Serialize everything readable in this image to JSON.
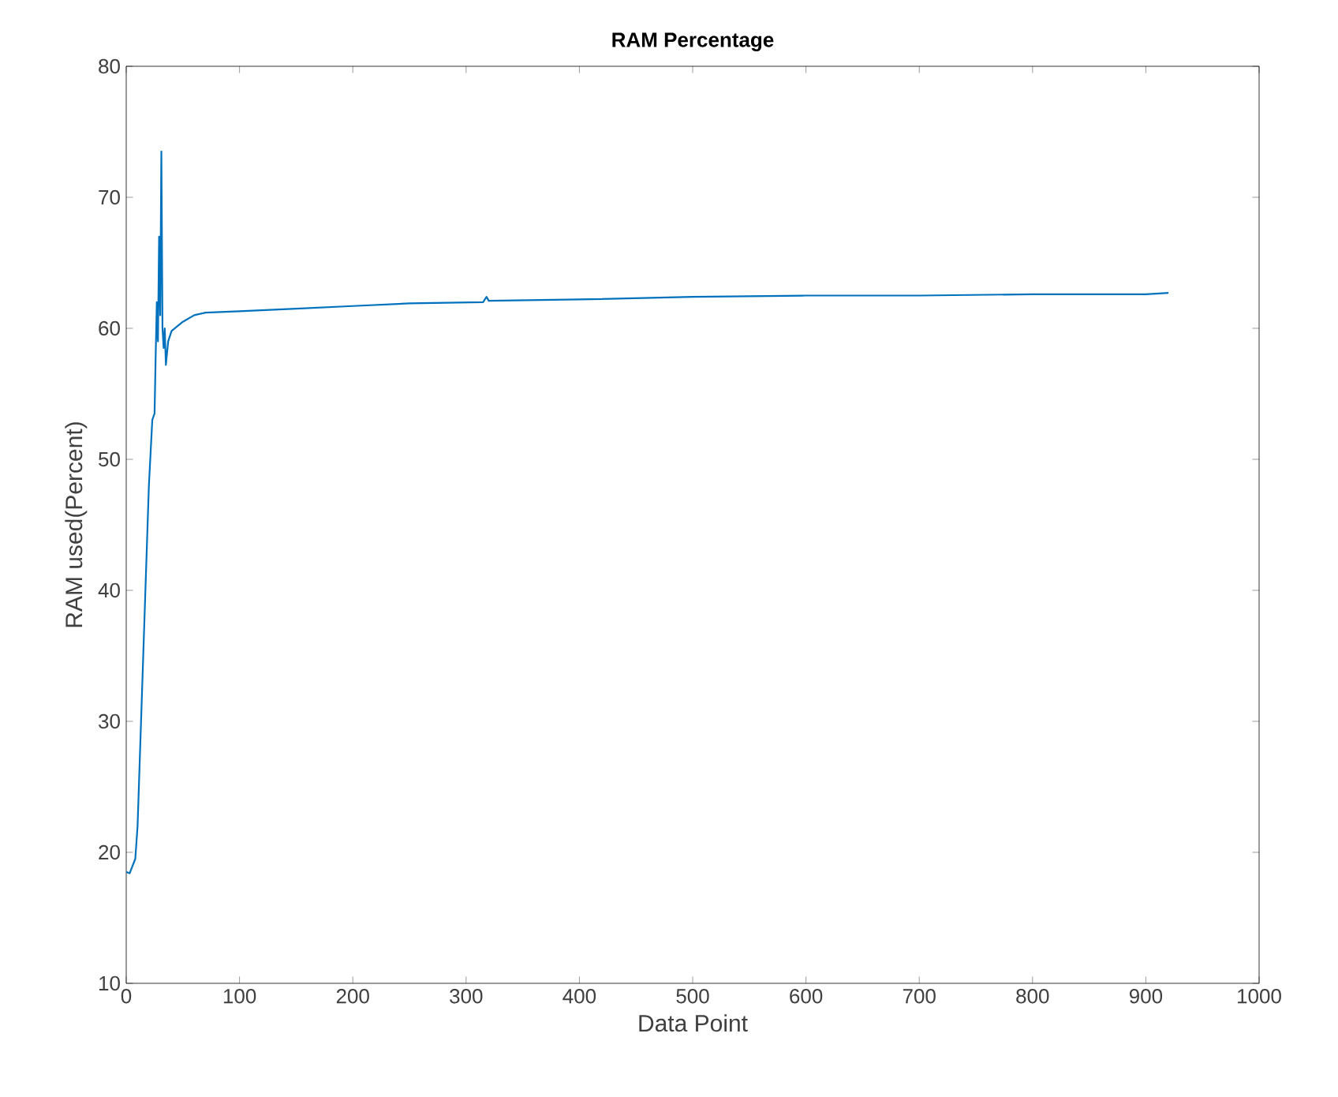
{
  "chart_data": {
    "type": "line",
    "title": "RAM Percentage",
    "xlabel": "Data Point",
    "ylabel": "RAM used(Percent)",
    "xlim": [
      0,
      1000
    ],
    "ylim": [
      10,
      80
    ],
    "xticks": [
      0,
      100,
      200,
      300,
      400,
      500,
      600,
      700,
      800,
      900,
      1000
    ],
    "yticks": [
      10,
      20,
      30,
      40,
      50,
      60,
      70,
      80
    ],
    "grid": false,
    "series": [
      {
        "color": "#0072bd",
        "x": [
          0,
          3,
          8,
          10,
          15,
          20,
          23,
          25,
          26,
          27,
          28,
          29,
          30,
          31,
          32,
          33,
          34,
          35,
          37,
          40,
          50,
          60,
          70,
          100,
          150,
          200,
          250,
          315,
          318,
          320,
          400,
          500,
          600,
          700,
          800,
          900,
          920
        ],
        "values": [
          18.5,
          18.4,
          19.5,
          22,
          35,
          48,
          53,
          53.5,
          58,
          62,
          59,
          67,
          61,
          73.5,
          60,
          58.5,
          60,
          57.2,
          59,
          59.8,
          60.5,
          61,
          61.2,
          61.3,
          61.5,
          61.7,
          61.9,
          62.0,
          62.4,
          62.1,
          62.2,
          62.4,
          62.5,
          62.5,
          62.6,
          62.6,
          62.7
        ]
      }
    ]
  }
}
